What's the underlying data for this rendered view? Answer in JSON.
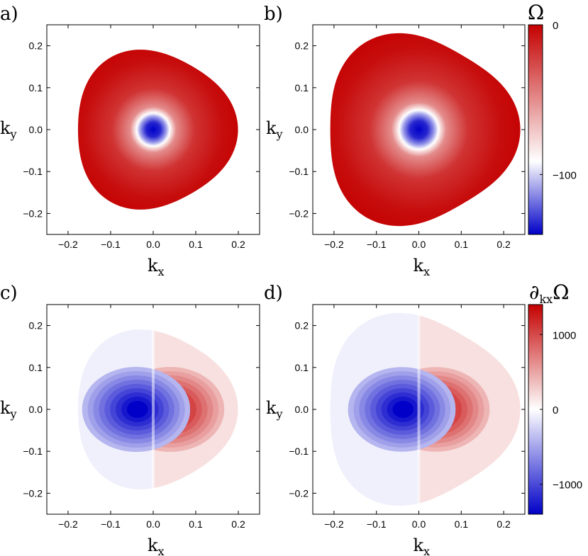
{
  "chart_data": [
    {
      "type": "heatmap",
      "panel": "a)",
      "quantity": "Omega",
      "x": {
        "label": "k",
        "sub": "x",
        "lim": [
          -0.25,
          0.25
        ],
        "ticks": [
          "-0.2",
          "-0.1",
          "0.0",
          "0.1",
          "0.2"
        ]
      },
      "y": {
        "label": "k",
        "sub": "y",
        "lim": [
          -0.25,
          0.25
        ],
        "ticks": [
          "-0.2",
          "-0.1",
          "0.0",
          "0.1",
          "0.2"
        ]
      },
      "boundary": {
        "r0": 0.188,
        "trigonal_amplitude": 0.06,
        "skew": 0.0
      },
      "profile": {
        "min_value": -140,
        "core_radius": 0.032,
        "edge_value": 0
      }
    },
    {
      "type": "heatmap",
      "panel": "b)",
      "quantity": "Omega",
      "x": {
        "label": "k",
        "sub": "x",
        "lim": [
          -0.25,
          0.25
        ],
        "ticks": [
          "-0.2",
          "-0.1",
          "0.0",
          "0.1",
          "0.2"
        ]
      },
      "y": {
        "label": "k",
        "sub": "y",
        "lim": [
          -0.25,
          0.25
        ],
        "ticks": [
          "-0.2",
          "-0.1",
          "0.0",
          "0.1",
          "0.2"
        ]
      },
      "boundary": {
        "r0": 0.224,
        "trigonal_amplitude": 0.08,
        "skew": 0.04
      },
      "profile": {
        "min_value": -120,
        "core_radius": 0.032,
        "edge_value": 0
      }
    },
    {
      "type": "heatmap",
      "panel": "c)",
      "quantity": "d_kx Omega",
      "x": {
        "label": "k",
        "sub": "x",
        "lim": [
          -0.25,
          0.25
        ],
        "ticks": [
          "-0.2",
          "-0.1",
          "0.0",
          "0.1",
          "0.2"
        ]
      },
      "y": {
        "label": "k",
        "sub": "y",
        "lim": [
          -0.25,
          0.25
        ],
        "ticks": [
          "-0.2",
          "-0.1",
          "0.0",
          "0.1",
          "0.2"
        ]
      },
      "boundary": {
        "r0": 0.188,
        "trigonal_amplitude": 0.06,
        "skew": 0.0
      },
      "profile": {
        "peak_value": 1300,
        "peak_kx": 0.035,
        "contours": true
      }
    },
    {
      "type": "heatmap",
      "panel": "d)",
      "quantity": "d_kx Omega",
      "x": {
        "label": "k",
        "sub": "x",
        "lim": [
          -0.25,
          0.25
        ],
        "ticks": [
          "-0.2",
          "-0.1",
          "0.0",
          "0.1",
          "0.2"
        ]
      },
      "y": {
        "label": "k",
        "sub": "y",
        "lim": [
          -0.25,
          0.25
        ],
        "ticks": [
          "-0.2",
          "-0.1",
          "0.0",
          "0.1",
          "0.2"
        ]
      },
      "boundary": {
        "r0": 0.224,
        "trigonal_amplitude": 0.08,
        "skew": 0.04
      },
      "profile": {
        "peak_value": 1300,
        "peak_kx": 0.035,
        "contours": true
      }
    }
  ],
  "colorbars": [
    {
      "title": "Ω",
      "range": [
        -140,
        0
      ],
      "ticks": [
        {
          "value": 0,
          "label": "0"
        },
        {
          "value": -100,
          "label": "−100"
        }
      ]
    },
    {
      "title": "∂",
      "title_sub": "kx",
      "title_tail": "Ω",
      "range": [
        -1400,
        1400
      ],
      "ticks": [
        {
          "value": 1000,
          "label": "1000"
        },
        {
          "value": 0,
          "label": "0"
        },
        {
          "value": -1000,
          "label": "−1000"
        }
      ]
    }
  ],
  "colors": {
    "red": "#c40000",
    "white": "#ffffff",
    "blue": "#0000c8"
  }
}
